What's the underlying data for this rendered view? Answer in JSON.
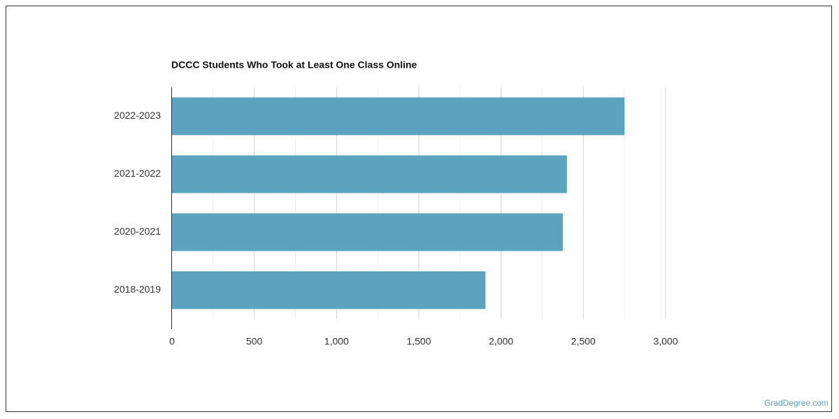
{
  "chart_data": {
    "type": "barh",
    "title": "DCCC Students Who Took at Least One Class Online",
    "categories": [
      "2022-2023",
      "2021-2022",
      "2020-2021",
      "2018-2019"
    ],
    "values": [
      2750,
      2400,
      2375,
      1905
    ],
    "color": "#5ba3bf",
    "xlim": [
      0,
      3000
    ],
    "xticks": [
      0,
      500,
      {
        "value": 1000,
        "label": "1,000"
      },
      {
        "value": 1500,
        "label": "1,500"
      },
      {
        "value": 2000,
        "label": "2,000"
      },
      {
        "value": 2500,
        "label": "2,500"
      },
      {
        "value": 3000,
        "label": "3,000"
      }
    ],
    "grid": true
  },
  "source": "GradDegree.com"
}
